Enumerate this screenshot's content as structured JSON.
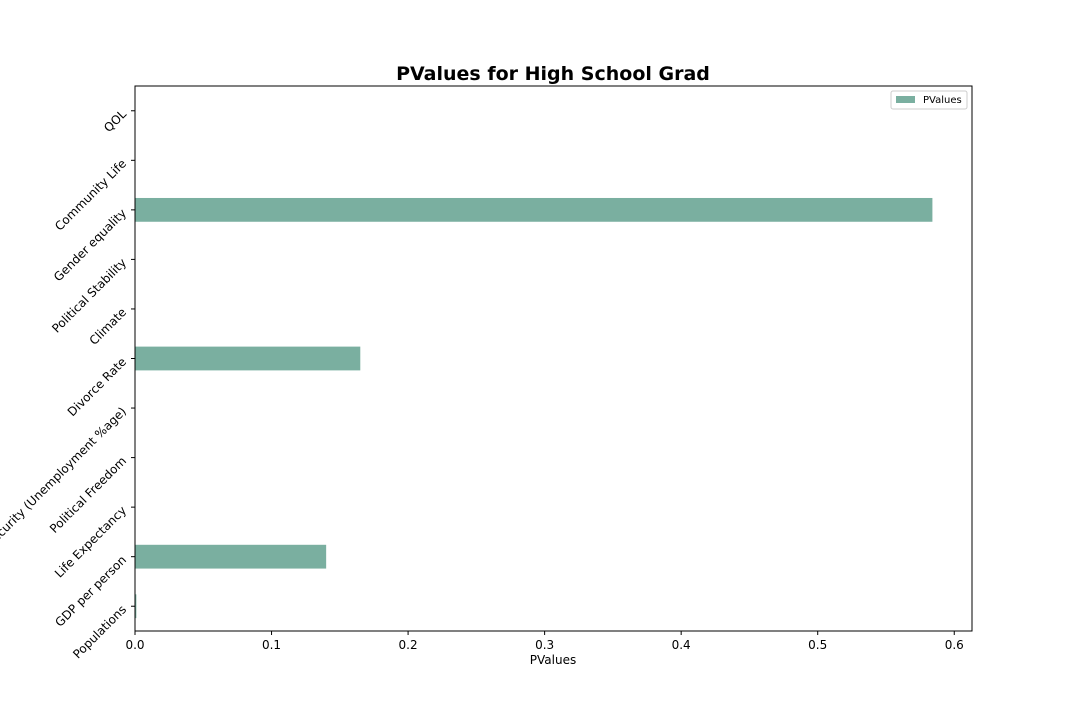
{
  "chart_data": {
    "type": "bar",
    "orientation": "horizontal",
    "title": "PValues for High School Grad",
    "xlabel": "PValues",
    "ylabel": "",
    "categories": [
      "Populations",
      "GDP per person",
      "Life Expectancy",
      "Political Freedom",
      "Job Security (Unemployment %age)",
      "Divorce Rate",
      "Climate",
      "Political Stability",
      "Gender equality",
      "Community Life",
      "QOL"
    ],
    "series": [
      {
        "name": "PValues",
        "color": "#7aafa0",
        "values": [
          0.001,
          0.14,
          0.0,
          0.0,
          0.0,
          0.165,
          0.0,
          0.0,
          0.584,
          0.0,
          0.0
        ]
      }
    ],
    "xlim": [
      0.0,
      0.613
    ],
    "xticks": [
      "0.0",
      "0.1",
      "0.2",
      "0.3",
      "0.4",
      "0.5",
      "0.6"
    ],
    "grid": false,
    "legend_position": "top-right"
  }
}
